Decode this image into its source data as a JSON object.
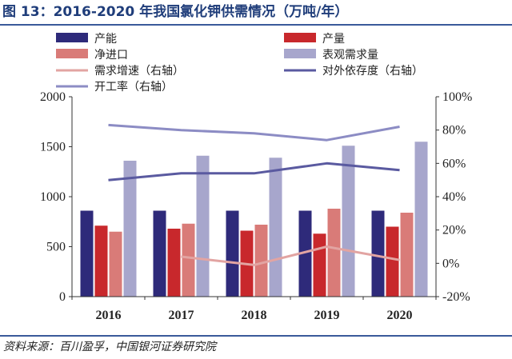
{
  "title": "图 13：2016-2020 年我国氯化钾供需情况（万吨/年）",
  "source": "资料来源：百川盈孚，中国银河证券研究院",
  "chart_data": {
    "type": "bar",
    "categories": [
      "2016",
      "2017",
      "2018",
      "2019",
      "2020"
    ],
    "ylim": [
      0,
      2000
    ],
    "yticks": [
      "0",
      "500",
      "1000",
      "1500",
      "2000"
    ],
    "y2lim": [
      -20,
      100
    ],
    "y2ticks": [
      "-20%",
      "0%",
      "20%",
      "40%",
      "60%",
      "80%",
      "100%"
    ],
    "series": [
      {
        "name": "产能",
        "type": "bar",
        "axis": "left",
        "color": "#2e2a7a",
        "values": [
          860,
          860,
          860,
          860,
          860
        ]
      },
      {
        "name": "产量",
        "type": "bar",
        "axis": "left",
        "color": "#c8282c",
        "values": [
          710,
          680,
          660,
          630,
          700
        ]
      },
      {
        "name": "净进口",
        "type": "bar",
        "axis": "left",
        "color": "#d97b78",
        "values": [
          650,
          730,
          720,
          880,
          840
        ]
      },
      {
        "name": "表观需求量",
        "type": "bar",
        "axis": "left",
        "color": "#a7a6cc",
        "values": [
          1360,
          1410,
          1390,
          1510,
          1550
        ]
      },
      {
        "name": "需求增速（右轴）",
        "type": "line",
        "axis": "right",
        "color": "#e2a4a2",
        "values": [
          null,
          4,
          -1,
          10,
          2
        ]
      },
      {
        "name": "对外依存度（右轴）",
        "type": "line",
        "axis": "right",
        "color": "#5a5aa0",
        "values": [
          50,
          54,
          54,
          60,
          56
        ]
      },
      {
        "name": "开工率（右轴）",
        "type": "line",
        "axis": "right",
        "color": "#8c8cc4",
        "values": [
          83,
          80,
          78,
          74,
          82
        ]
      }
    ]
  }
}
